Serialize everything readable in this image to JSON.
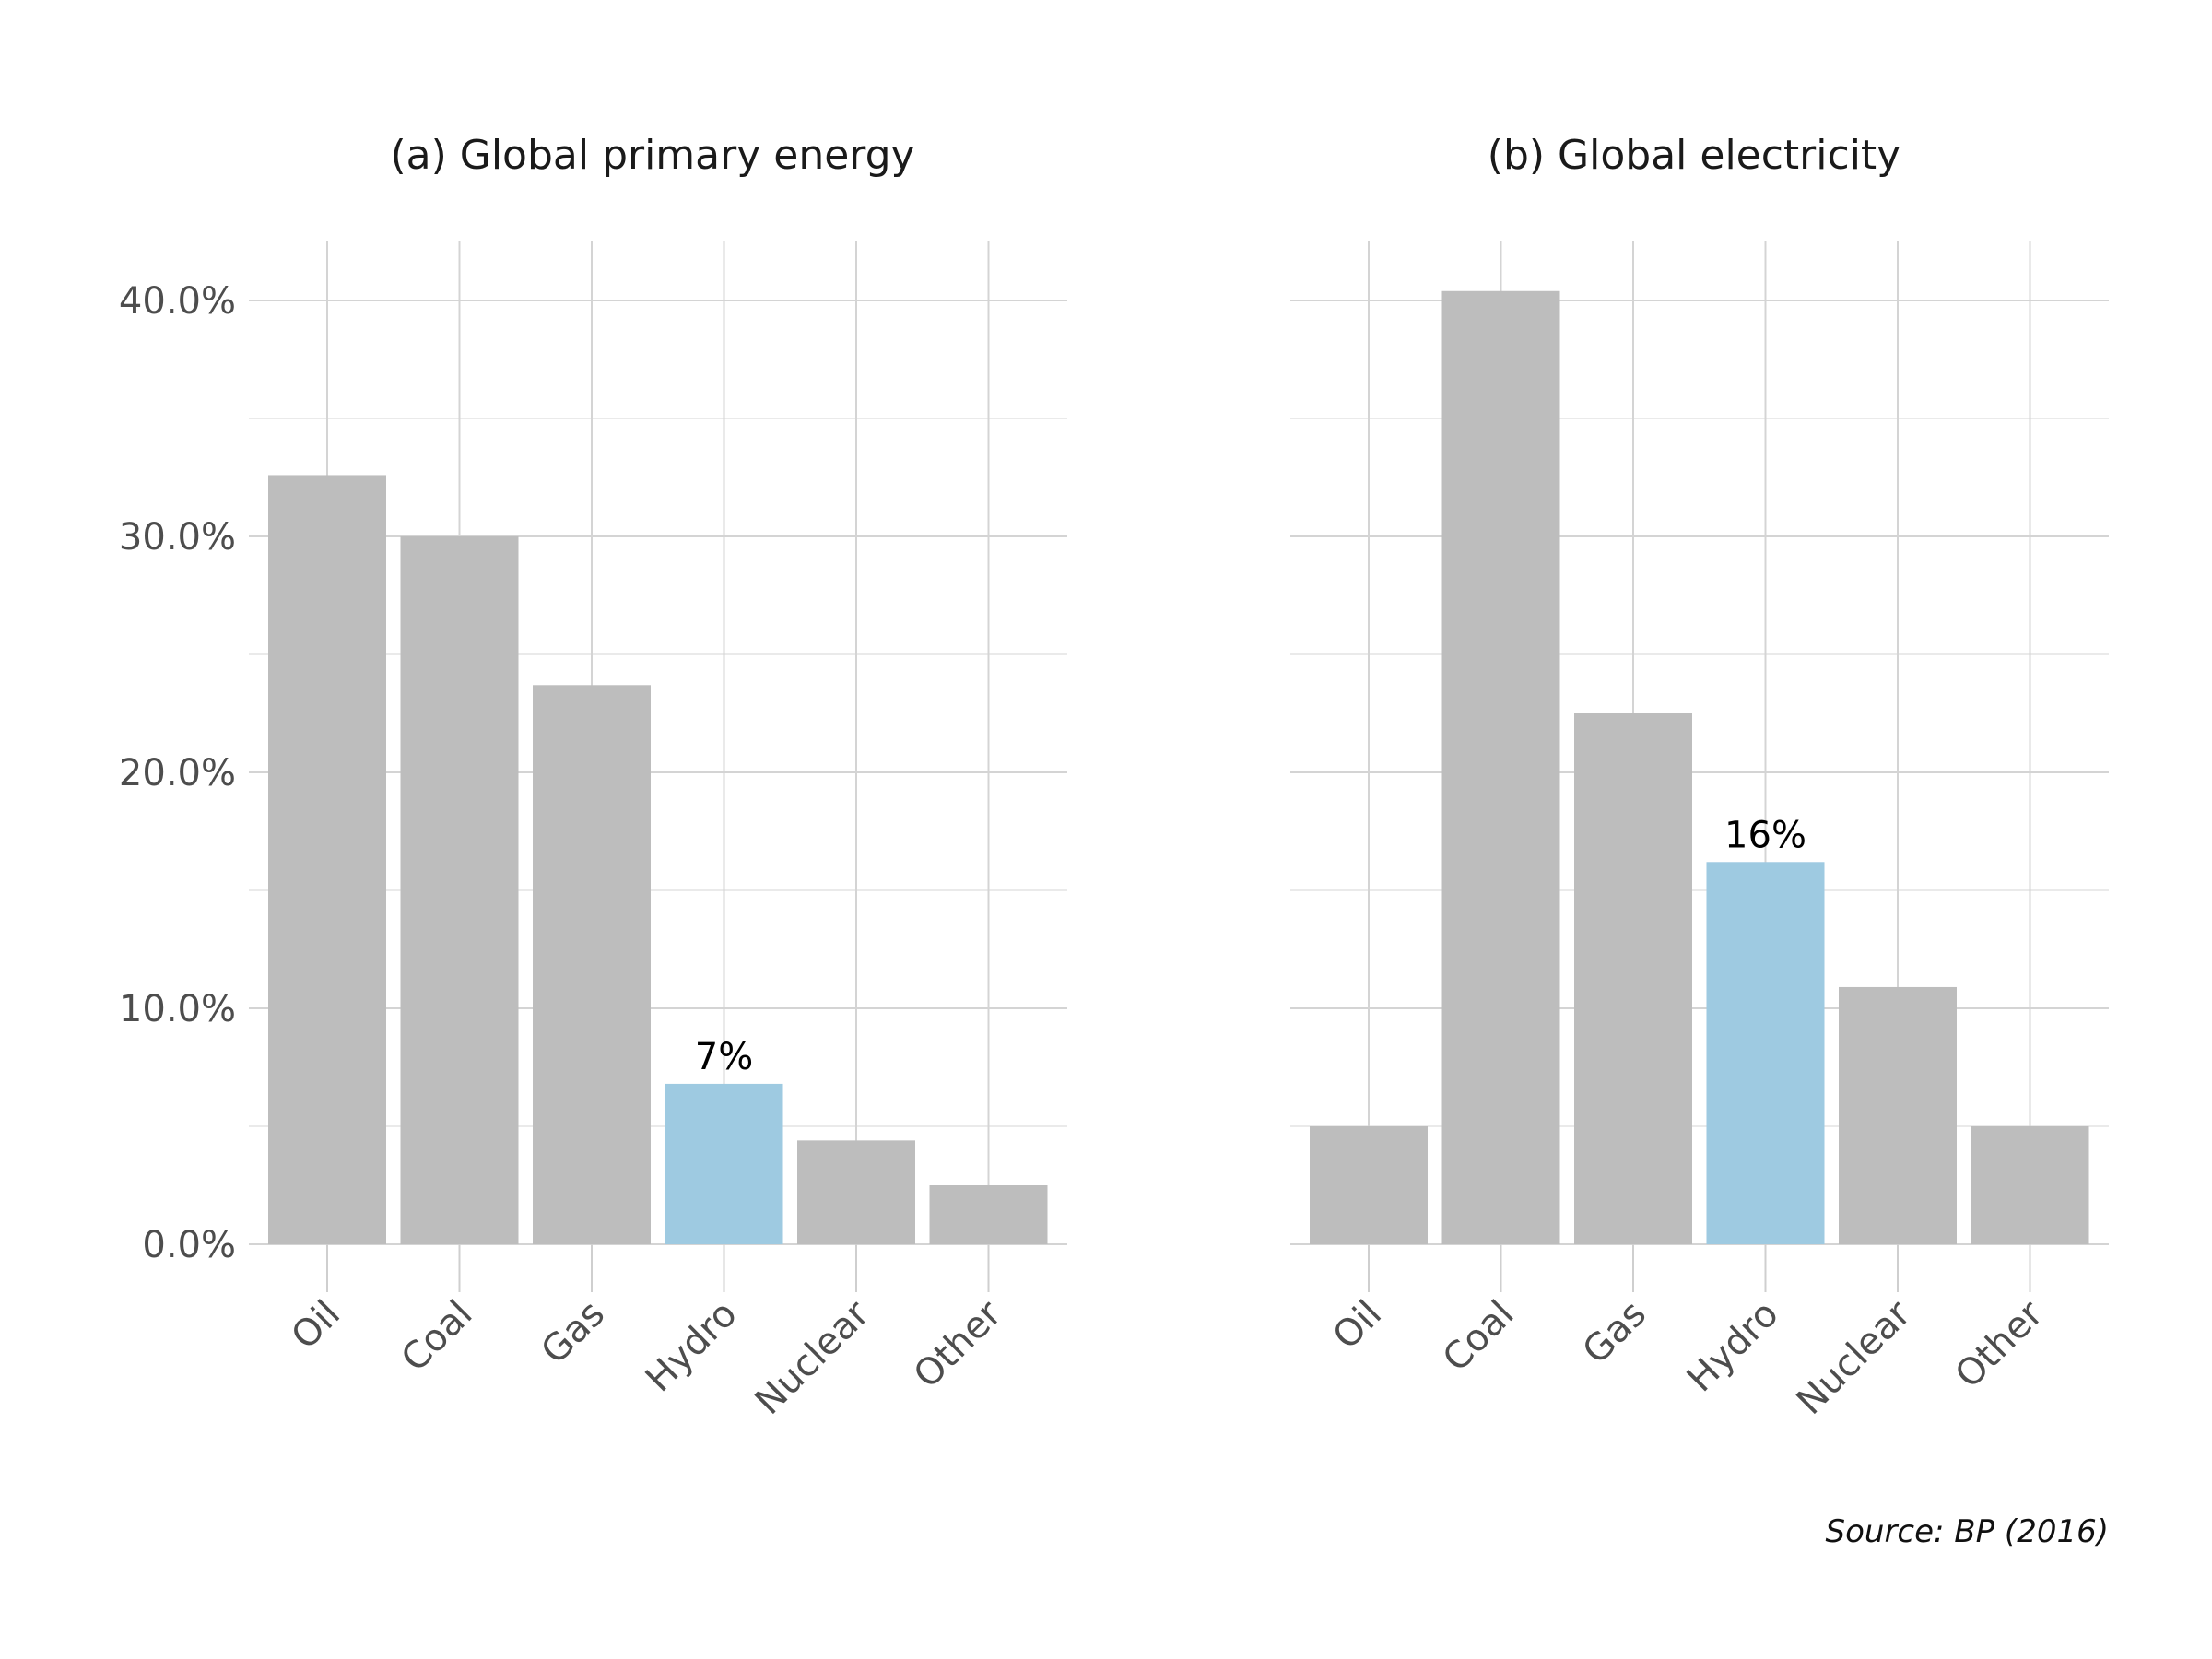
{
  "source_note": "Source: BP (2016)",
  "colors": {
    "bar_default": "#bdbdbd",
    "bar_highlight": "#9ecae1",
    "grid": "#d4d4d4"
  },
  "chart_data": [
    {
      "type": "bar",
      "title": "(a) Global primary energy",
      "categories": [
        "Oil",
        "Coal",
        "Gas",
        "Hydro",
        "Nuclear",
        "Other"
      ],
      "values": [
        32.6,
        30.0,
        23.7,
        6.8,
        4.4,
        2.5
      ],
      "highlight_index": 3,
      "highlight_label": "7%",
      "ylim": [
        0,
        40
      ],
      "yticks": [
        0,
        10,
        20,
        30,
        40
      ],
      "ytick_labels": [
        "0.0%",
        "10.0%",
        "20.0%",
        "30.0%",
        "40.0%"
      ],
      "show_y_labels": true,
      "grid": true
    },
    {
      "type": "bar",
      "title": "(b) Global electricity",
      "categories": [
        "Oil",
        "Coal",
        "Gas",
        "Hydro",
        "Nuclear",
        "Other"
      ],
      "values": [
        5.0,
        40.4,
        22.5,
        16.2,
        10.9,
        5.0
      ],
      "highlight_index": 3,
      "highlight_label": "16%",
      "ylim": [
        0,
        40
      ],
      "yticks": [
        0,
        10,
        20,
        30,
        40
      ],
      "ytick_labels": [
        "0.0%",
        "10.0%",
        "20.0%",
        "30.0%",
        "40.0%"
      ],
      "show_y_labels": false,
      "grid": true
    }
  ]
}
